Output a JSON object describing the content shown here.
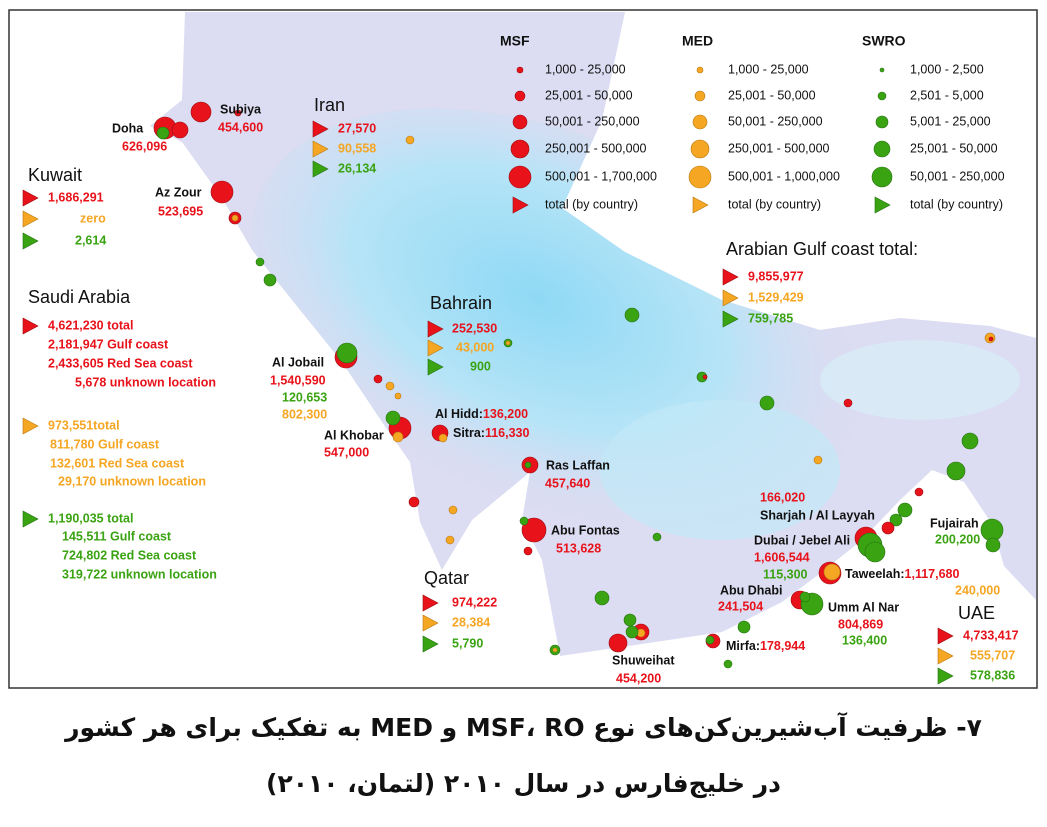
{
  "legend": {
    "columns": [
      {
        "title": "MSF",
        "items": [
          "1,000 - 25,000",
          "25,001 - 50,000",
          "50,001 - 250,000",
          "250,001 - 500,000",
          "500,001 - 1,700,000",
          "total (by country)"
        ]
      },
      {
        "title": "MED",
        "items": [
          "1,000 - 25,000",
          "25,001 - 50,000",
          "50,001 - 250,000",
          "250,001 - 500,000",
          "500,001 - 1,000,000",
          "total (by country)"
        ]
      },
      {
        "title": "SWRO",
        "items": [
          "1,000 - 2,500",
          "2,501 - 5,000",
          "5,001 - 25,000",
          "25,001 - 50,000",
          "50,001 - 250,000",
          "total (by country)"
        ]
      }
    ]
  },
  "regions": {
    "kuwait": {
      "name": "Kuwait",
      "lines": [
        "1,686,291",
        "zero",
        "2,614"
      ]
    },
    "saudi_arabia": {
      "name": "Saudi Arabia",
      "msf": [
        "4,621,230 total",
        "2,181,947 Gulf coast",
        "2,433,605 Red Sea coast",
        "5,678 unknown location"
      ],
      "med": [
        "973,551total",
        "811,780 Gulf coast",
        "132,601 Red Sea coast",
        "29,170 unknown location"
      ],
      "swro": [
        "1,190,035 total",
        "145,511 Gulf coast",
        "724,802 Red Sea coast",
        "319,722 unknown location"
      ]
    },
    "iran": {
      "name": "Iran",
      "lines": [
        "27,570",
        "90,558",
        "26,134"
      ]
    },
    "bahrain": {
      "name": "Bahrain",
      "lines": [
        "252,530",
        "43,000",
        "900"
      ]
    },
    "qatar": {
      "name": "Qatar",
      "lines": [
        "974,222",
        "28,384",
        "5,790"
      ]
    },
    "uae": {
      "name": "UAE",
      "lines": [
        "4,733,417",
        "555,707",
        "578,836"
      ]
    },
    "gulf_total": {
      "name": "Arabian Gulf coast total:",
      "lines": [
        "9,855,977",
        "1,529,429",
        "759,785"
      ]
    }
  },
  "plants": [
    {
      "name": "Doha",
      "values": [
        "626,096"
      ]
    },
    {
      "name": "Subiya",
      "values": [
        "454,600"
      ]
    },
    {
      "name": "Az Zour",
      "values": [
        "523,695"
      ]
    },
    {
      "name": "Al Jobail",
      "values": [
        "1,540,590",
        "120,653",
        "802,300"
      ]
    },
    {
      "name": "Al Khobar",
      "values": [
        "547,000"
      ]
    },
    {
      "name": "Al Hidd:",
      "values": [
        "136,200"
      ]
    },
    {
      "name": "Sitra:",
      "values": [
        "116,330"
      ]
    },
    {
      "name": "Ras Laffan",
      "values": [
        "457,640"
      ]
    },
    {
      "name": "Abu Fontas",
      "values": [
        "513,628"
      ]
    },
    {
      "name": "Shuweihat",
      "values": [
        "454,200"
      ]
    },
    {
      "name": "Mirfa:",
      "values": [
        "178,944"
      ]
    },
    {
      "name": "Abu Dhabi",
      "values": [
        "241,504"
      ]
    },
    {
      "name": "Umm Al Nar",
      "values": [
        "804,869",
        "136,400"
      ]
    },
    {
      "name": "Taweelah:",
      "values": [
        "1,117,680",
        "240,000"
      ]
    },
    {
      "name": "Dubai / Jebel Ali",
      "values": [
        "1,606,544",
        "115,300"
      ]
    },
    {
      "name": "Sharjah / Al Layyah",
      "values": [
        "166,020"
      ]
    },
    {
      "name": "Fujairah",
      "values": [
        "200,200"
      ]
    }
  ],
  "caption": {
    "line1": "۷- ظرفیت آب‌شیرین‌کن‌های نوع MSF، RO و MED به تفکیک برای هر کشور",
    "line2": "در خلیج‌فارس در سال ۲۰۱۰ (لتمان، ۲۰۱۰)"
  }
}
